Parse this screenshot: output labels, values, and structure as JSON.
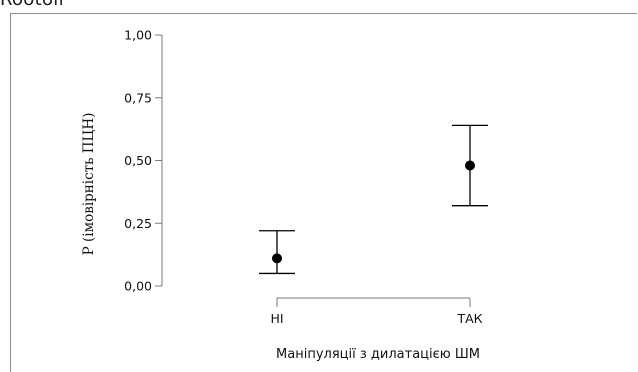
{
  "header": {
    "cut_text": "Rootoll"
  },
  "chart_data": {
    "type": "scatter",
    "title": "",
    "xlabel": "Маніпуляції з дилатацією ШМ",
    "ylabel": "Р (імовірність ПЦН)",
    "categories": [
      "НІ",
      "ТАК"
    ],
    "points": [
      {
        "category": "НІ",
        "value": 0.11,
        "lower": 0.05,
        "upper": 0.22
      },
      {
        "category": "ТАК",
        "value": 0.48,
        "lower": 0.32,
        "upper": 0.64
      }
    ],
    "ylim": [
      0,
      1
    ],
    "yticks": [
      {
        "value": 0,
        "label": "0,00"
      },
      {
        "value": 0.25,
        "label": "0,25"
      },
      {
        "value": 0.5,
        "label": "0,50"
      },
      {
        "value": 0.75,
        "label": "0,75"
      },
      {
        "value": 1,
        "label": "1,00"
      }
    ],
    "grid": false,
    "colors": {
      "marks": "#000000",
      "axis": "#7a7a7a"
    }
  }
}
